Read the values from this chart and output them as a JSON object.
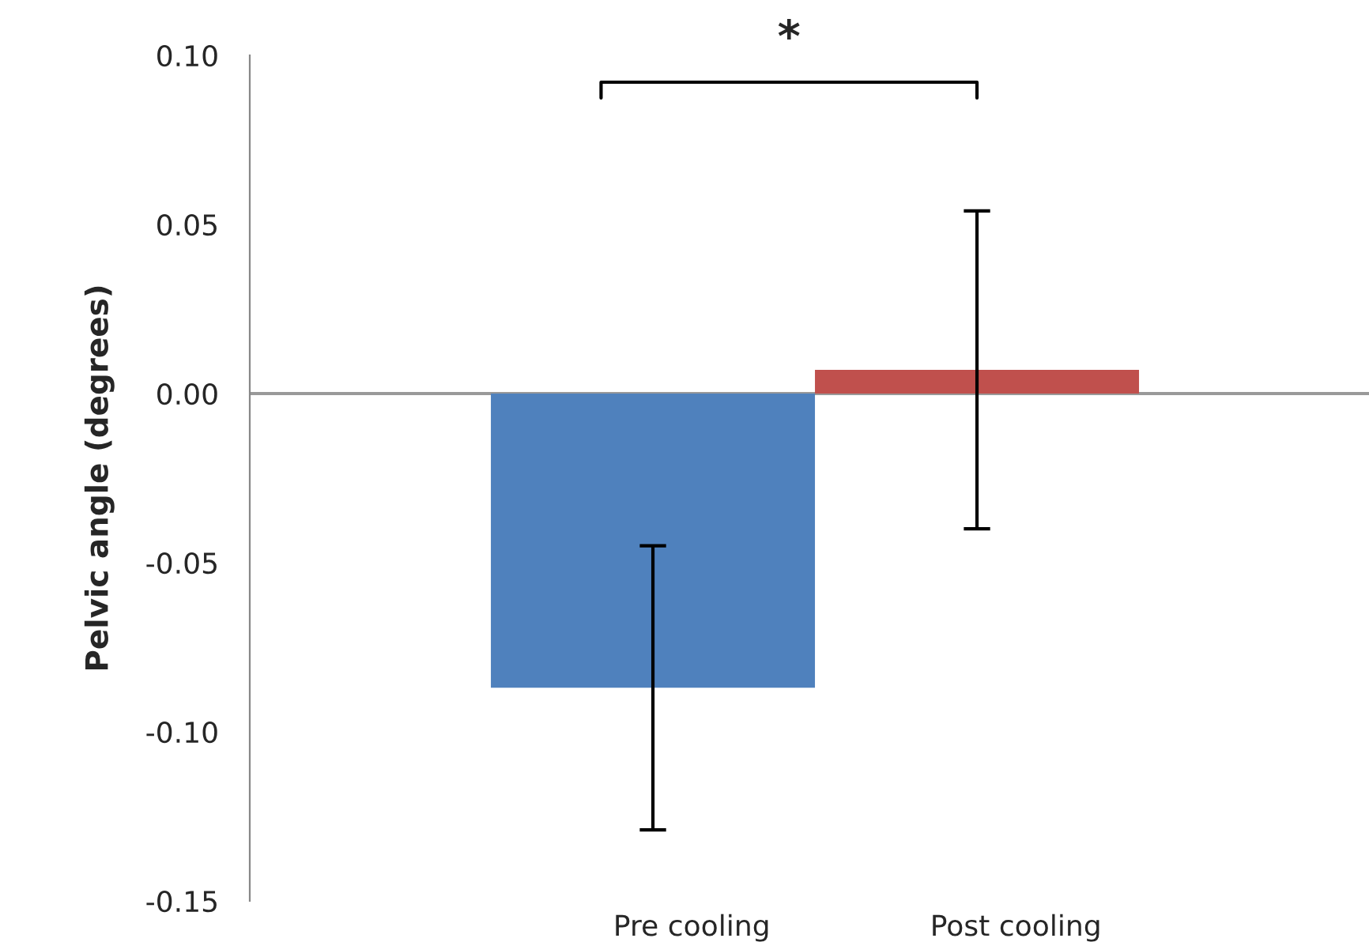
{
  "chart_data": {
    "type": "bar",
    "ylabel": "Pelvic angle (degrees)",
    "categories": [
      "Pre cooling",
      "Post cooling"
    ],
    "values": [
      -0.087,
      0.007
    ],
    "colors": [
      "#4f81bd",
      "#c0504d"
    ],
    "errors": [
      0.042,
      0.047
    ],
    "ylim": [
      -0.15,
      0.1
    ],
    "yticks": [
      {
        "value": -0.15,
        "label": "-0.15"
      },
      {
        "value": -0.1,
        "label": "-0.10"
      },
      {
        "value": -0.05,
        "label": "-0.05"
      },
      {
        "value": 0.0,
        "label": "0.00"
      },
      {
        "value": 0.05,
        "label": "0.05"
      },
      {
        "value": 0.1,
        "label": "0.10"
      }
    ],
    "annotations": [
      "*"
    ]
  }
}
